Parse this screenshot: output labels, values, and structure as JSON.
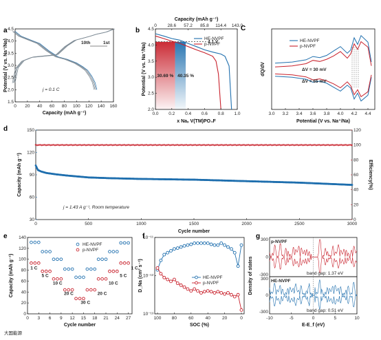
{
  "watermark": "大国能源",
  "colors": {
    "blue": "#1f6fae",
    "red": "#c8202b",
    "gray": "#7f8c96"
  },
  "chart_data": [
    {
      "id": "a",
      "type": "line",
      "panel_label": "a",
      "xlabel": "Capacity (mAh g⁻¹)",
      "ylabel": "Potential (V vs. Na⁺/Na)",
      "xlim": [
        0,
        160
      ],
      "ylim": [
        1.5,
        4.5
      ],
      "xticks": [
        "0",
        "20",
        "40",
        "60",
        "80",
        "100",
        "120",
        "140",
        "160"
      ],
      "yticks": [
        "1.5",
        "2.0",
        "2.5",
        "3.0",
        "3.5",
        "4.0",
        "4.5"
      ],
      "annotation": "j = 0.1 C",
      "arrow_labels": [
        "10th",
        "1st"
      ],
      "series": [
        {
          "label": "charge",
          "x": [
            0,
            5,
            15,
            30,
            50,
            70,
            85,
            100,
            115,
            125,
            135,
            150,
            162
          ],
          "y": [
            2.3,
            2.9,
            3.2,
            3.35,
            3.4,
            3.45,
            3.8,
            4.05,
            4.15,
            4.22,
            4.3,
            4.38,
            4.5
          ]
        },
        {
          "label": "discharge",
          "x": [
            0,
            10,
            25,
            40,
            55,
            70,
            85,
            100,
            110,
            118,
            125,
            130,
            133
          ],
          "y": [
            4.4,
            4.2,
            4.05,
            3.9,
            3.6,
            3.35,
            3.25,
            3.1,
            2.95,
            2.8,
            2.55,
            2.3,
            2.0
          ]
        }
      ]
    },
    {
      "id": "b",
      "type": "line",
      "panel_label": "b",
      "xlabel": "x Naₓ V(TM)PO₄F",
      "ylabel": "Potential (V vs. Na⁺/Na)",
      "top_xlabel": "Capacity (mAh g⁻¹)",
      "xlim": [
        0,
        1.0
      ],
      "ylim": [
        2.0,
        4.5
      ],
      "xticks": [
        "0.0",
        "0.2",
        "0.4",
        "0.6",
        "0.8",
        "1.0"
      ],
      "top_xticks": [
        "0",
        "28.6",
        "57.2",
        "85.8",
        "114.4",
        "143.0"
      ],
      "yticks": [
        "2.0",
        "2.5",
        "3.0",
        "3.5",
        "4.0",
        "4.5"
      ],
      "hline": {
        "y": 4.1,
        "label": "4.1 V"
      },
      "region_labels": [
        "30.69 %",
        "40.35 %"
      ],
      "legend": [
        "HE-NVPF",
        "p-NVPF"
      ],
      "series": [
        {
          "name": "HE-NVPF",
          "x": [
            0,
            0.1,
            0.2,
            0.3,
            0.4,
            0.5,
            0.6,
            0.7,
            0.8,
            0.85,
            0.9,
            0.93
          ],
          "y": [
            4.35,
            4.28,
            4.2,
            4.15,
            4.05,
            3.95,
            3.85,
            3.78,
            3.72,
            3.65,
            3.35,
            2.0
          ]
        },
        {
          "name": "p-NVPF",
          "x": [
            0,
            0.1,
            0.2,
            0.3,
            0.4,
            0.5,
            0.6,
            0.7,
            0.74,
            0.77,
            0.8
          ],
          "y": [
            4.28,
            4.2,
            4.12,
            4.05,
            3.95,
            3.85,
            3.76,
            3.65,
            3.5,
            3.1,
            2.0
          ]
        }
      ]
    },
    {
      "id": "c",
      "type": "line",
      "panel_label": "c",
      "xlabel": "Potential (V vs. Na⁺/Na)",
      "ylabel": "dQ/dV",
      "xlim": [
        3.0,
        4.5
      ],
      "xticks": [
        "3.0",
        "3.2",
        "3.4",
        "3.6",
        "3.8",
        "4.0",
        "4.2",
        "4.4"
      ],
      "legend": [
        "HE-NVPF",
        "p-NVPF"
      ],
      "annotations": [
        "ΔV = 30 mV",
        "ΔV = 65 mV"
      ],
      "series": [
        {
          "name": "HE-NVPF",
          "x": [
            3.05,
            3.3,
            3.5,
            3.6,
            3.7,
            3.8,
            3.9,
            4.0,
            4.1,
            4.15,
            4.2,
            4.25,
            4.3,
            4.4,
            4.45
          ],
          "y": [
            0.3,
            0.4,
            0.6,
            0.9,
            0.8,
            1.0,
            1.4,
            1.8,
            1.2,
            1.5,
            2.6,
            2.0,
            2.8,
            2.2,
            0.4
          ]
        },
        {
          "name": "p-NVPF",
          "x": [
            3.05,
            3.3,
            3.5,
            3.6,
            3.7,
            3.8,
            3.9,
            4.0,
            4.1,
            4.15,
            4.2,
            4.25,
            4.3,
            4.4,
            4.45
          ],
          "y": [
            0.2,
            0.3,
            0.5,
            0.8,
            0.7,
            0.9,
            1.2,
            1.6,
            1.0,
            1.4,
            2.3,
            1.8,
            2.5,
            2.0,
            0.3
          ]
        }
      ]
    },
    {
      "id": "d",
      "type": "scatter",
      "panel_label": "d",
      "xlabel": "Cycle number",
      "ylabel": "Capacity (mAh g⁻¹)",
      "y2label": "Efficiency(%)",
      "xlim": [
        0,
        3000
      ],
      "ylim": [
        30,
        150
      ],
      "y2lim": [
        0,
        120
      ],
      "xticks": [
        "0",
        "500",
        "1000",
        "1500",
        "2000",
        "2500",
        "3000"
      ],
      "yticks": [
        "30",
        "60",
        "90",
        "120",
        "150"
      ],
      "y2ticks": [
        "0",
        "20",
        "40",
        "60",
        "80",
        "100",
        "120"
      ],
      "annotation": "j = 1.43 A g⁻¹, Room temperature",
      "series": [
        {
          "name": "Capacity",
          "x": [
            0,
            20,
            50,
            100,
            200,
            300,
            500,
            700,
            1000,
            1500,
            2000,
            2500,
            3000
          ],
          "y": [
            103,
            97,
            95,
            93,
            91,
            89.5,
            87,
            86,
            85,
            84,
            82,
            80,
            77
          ]
        },
        {
          "name": "Efficiency",
          "x": [
            0,
            3000
          ],
          "y": [
            100,
            100
          ]
        }
      ]
    },
    {
      "id": "e",
      "type": "scatter",
      "panel_label": "e",
      "xlabel": "Cycle number",
      "ylabel": "Capacity (mAh g⁻¹)",
      "xlim": [
        0,
        28
      ],
      "ylim": [
        0,
        140
      ],
      "xticks": [
        "0",
        "3",
        "6",
        "9",
        "12",
        "15",
        "18",
        "21",
        "24",
        "27"
      ],
      "yticks": [
        "0",
        "20",
        "40",
        "60",
        "80",
        "100",
        "120",
        "140"
      ],
      "legend": [
        "HE-NVPF",
        "p-NVPF"
      ],
      "rate_labels": [
        "1 C",
        "5 C",
        "10 C",
        "20 C",
        "30 C",
        "20 C",
        "10 C",
        "5 C",
        "1 C"
      ],
      "series": [
        {
          "name": "HE-NVPF",
          "x": [
            1,
            2,
            3,
            4,
            5,
            6,
            7,
            8,
            9,
            10,
            11,
            12,
            13,
            14,
            15,
            16,
            17,
            18,
            19,
            20,
            21,
            22,
            23,
            24,
            25,
            26,
            27
          ],
          "y": [
            131,
            131,
            131,
            114,
            114,
            114,
            100,
            100,
            100,
            82,
            82,
            82,
            67,
            67,
            67,
            82,
            82,
            82,
            100,
            100,
            100,
            114,
            114,
            114,
            130,
            130,
            130
          ]
        },
        {
          "name": "p-NVPF",
          "x": [
            1,
            2,
            3,
            4,
            5,
            6,
            7,
            8,
            9,
            10,
            11,
            12,
            13,
            14,
            15,
            16,
            17,
            18,
            19,
            20,
            21,
            22,
            23,
            24,
            25,
            26,
            27
          ],
          "y": [
            93,
            93,
            93,
            78,
            78,
            78,
            64,
            64,
            64,
            44,
            44,
            44,
            28,
            28,
            28,
            44,
            44,
            44,
            64,
            64,
            64,
            78,
            78,
            78,
            93,
            93,
            93
          ]
        }
      ]
    },
    {
      "id": "f",
      "type": "line",
      "panel_label": "f",
      "xlabel": "SOC (%)",
      "ylabel": "D_Na (cm² s⁻¹)",
      "xlim": [
        100,
        0
      ],
      "ylim_log": [
        -13,
        -11
      ],
      "xticks": [
        "100",
        "80",
        "60",
        "40",
        "20",
        "0"
      ],
      "yticks": [
        "10⁻¹³",
        "10⁻¹²",
        "10⁻¹¹"
      ],
      "legend": [
        "HE-NVPF",
        "p-NVPF"
      ],
      "series": [
        {
          "name": "HE-NVPF",
          "x": [
            100,
            96,
            92,
            88,
            84,
            80,
            76,
            72,
            68,
            64,
            60,
            56,
            52,
            48,
            44,
            40,
            36,
            32,
            28,
            24,
            20,
            16,
            12,
            8,
            4,
            0
          ],
          "y": [
            -11.85,
            -11.6,
            -11.45,
            -11.4,
            -11.35,
            -11.3,
            -11.28,
            -11.25,
            -11.22,
            -11.2,
            -11.18,
            -11.15,
            -11.15,
            -11.15,
            -11.15,
            -11.15,
            -11.18,
            -11.2,
            -11.2,
            -11.15,
            -11.2,
            -11.25,
            -11.3,
            -11.4,
            -11.75,
            -11.2
          ]
        },
        {
          "name": "p-NVPF",
          "x": [
            100,
            96,
            92,
            88,
            84,
            80,
            76,
            72,
            68,
            64,
            60,
            56,
            52,
            48,
            44,
            40,
            36,
            32,
            28,
            24,
            20,
            16,
            12,
            8,
            4,
            0
          ],
          "y": [
            -11.8,
            -11.95,
            -12.05,
            -12.1,
            -12.15,
            -12.1,
            -12.2,
            -12.25,
            -12.3,
            -12.35,
            -12.4,
            -12.35,
            -12.4,
            -12.45,
            -12.42,
            -12.4,
            -12.42,
            -12.45,
            -12.42,
            -12.45,
            -12.48,
            -12.45,
            -12.5,
            -12.55,
            -12.5,
            -12.9
          ]
        }
      ]
    },
    {
      "id": "g",
      "type": "line",
      "panel_label": "g",
      "xlabel": "E-E_f (eV)",
      "ylabel": "Density of states",
      "xlim": [
        -10,
        10
      ],
      "xticks": [
        "-10",
        "-5",
        "0",
        "5",
        "10"
      ],
      "subpanels": [
        {
          "name": "p-NVPF",
          "band_gap": "band gap: 1.37 eV",
          "yticks": [
            "300",
            "150",
            "0",
            "-150",
            "-300"
          ]
        },
        {
          "name": "HE-NVPF",
          "band_gap": "band gap: 0.51 eV",
          "yticks": [
            "300",
            "150",
            "0",
            "-150",
            "-300"
          ]
        }
      ]
    }
  ]
}
